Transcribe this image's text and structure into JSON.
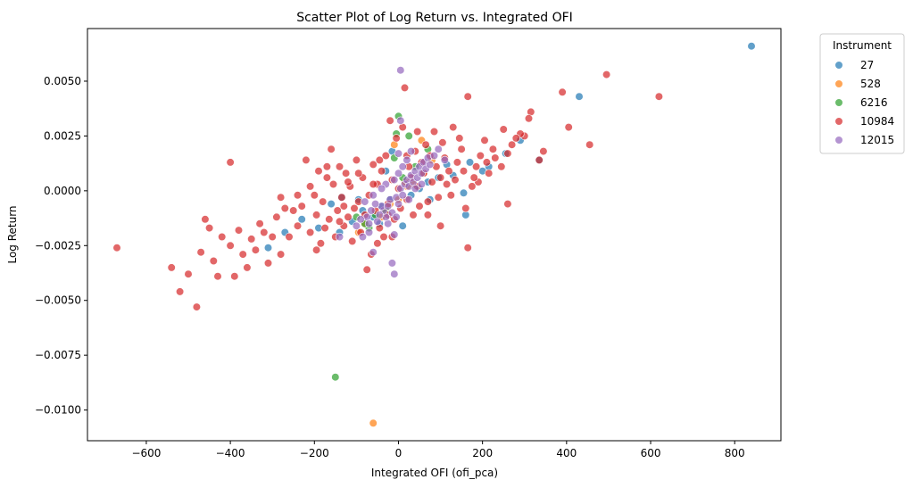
{
  "chart_data": {
    "type": "scatter",
    "title": "Scatter Plot of Log Return vs. Integrated OFI",
    "xlabel": "Integrated OFI (ofi_pca)",
    "ylabel": "Log Return",
    "xlim": [
      -740,
      910
    ],
    "ylim": [
      -0.0114,
      0.0074
    ],
    "xticks": [
      {
        "value": -600,
        "label": "−600"
      },
      {
        "value": -400,
        "label": "−400"
      },
      {
        "value": -200,
        "label": "−200"
      },
      {
        "value": 0,
        "label": "0"
      },
      {
        "value": 200,
        "label": "200"
      },
      {
        "value": 400,
        "label": "400"
      },
      {
        "value": 600,
        "label": "600"
      },
      {
        "value": 800,
        "label": "800"
      }
    ],
    "yticks": [
      {
        "value": -0.01,
        "label": "−0.0100"
      },
      {
        "value": -0.0075,
        "label": "−0.0075"
      },
      {
        "value": -0.005,
        "label": "−0.0050"
      },
      {
        "value": -0.0025,
        "label": "−0.0025"
      },
      {
        "value": 0,
        "label": "0.0000"
      },
      {
        "value": 0.0025,
        "label": "0.0025"
      },
      {
        "value": 0.005,
        "label": "0.0050"
      }
    ],
    "grid": false,
    "legend": {
      "title": "Instrument",
      "placement": "outside-top-right"
    },
    "marker_alpha": 0.7,
    "series": [
      {
        "name": "27",
        "color": "#1f77b4",
        "points": [
          [
            840,
            0.0066
          ],
          [
            430,
            0.0043
          ],
          [
            335,
            0.0014
          ],
          [
            290,
            0.0023
          ],
          [
            255,
            0.0017
          ],
          [
            215,
            0.0011
          ],
          [
            200,
            0.0009
          ],
          [
            170,
            0.0013
          ],
          [
            160,
            -0.0011
          ],
          [
            155,
            -0.0001
          ],
          [
            130,
            0.0007
          ],
          [
            115,
            0.0012
          ],
          [
            95,
            0.0006
          ],
          [
            70,
            0.0004
          ],
          [
            50,
            0.0001
          ],
          [
            30,
            -0.0002
          ],
          [
            20,
            0.0003
          ],
          [
            -20,
            -0.0004
          ],
          [
            -40,
            -0.0007
          ],
          [
            -60,
            -0.0012
          ],
          [
            -85,
            -0.0009
          ],
          [
            -110,
            -0.0014
          ],
          [
            -140,
            -0.0019
          ],
          [
            -160,
            -0.0006
          ],
          [
            -190,
            -0.0017
          ],
          [
            -230,
            -0.0013
          ],
          [
            -270,
            -0.0019
          ],
          [
            -310,
            -0.0026
          ],
          [
            -135,
            -0.0003
          ],
          [
            -95,
            -0.0004
          ],
          [
            -45,
            -0.0015
          ],
          [
            -30,
            0.0009
          ],
          [
            10,
            -0.0016
          ],
          [
            -15,
            0.0018
          ],
          [
            75,
            -0.0004
          ]
        ]
      },
      {
        "name": "528",
        "color": "#ff7f0e",
        "points": [
          [
            -60,
            -0.0106
          ],
          [
            -80,
            -0.0015
          ],
          [
            -40,
            -0.0012
          ],
          [
            -20,
            -0.0006
          ],
          [
            0,
            -0.0004
          ],
          [
            20,
            0.0002
          ],
          [
            35,
            0.0003
          ],
          [
            60,
            0.0008
          ],
          [
            80,
            0.0014
          ],
          [
            55,
            0.0023
          ],
          [
            -10,
            0.0021
          ],
          [
            -95,
            -0.0019
          ],
          [
            -30,
            -0.0009
          ],
          [
            15,
            0.0004
          ]
        ]
      },
      {
        "name": "6216",
        "color": "#2ca02c",
        "points": [
          [
            -150,
            -0.0085
          ],
          [
            0,
            0.0034
          ],
          [
            -5,
            0.0026
          ],
          [
            25,
            0.0025
          ],
          [
            70,
            0.0019
          ],
          [
            -10,
            0.0015
          ],
          [
            40,
            0.0011
          ],
          [
            -70,
            -0.0017
          ],
          [
            -80,
            -0.0015
          ],
          [
            -30,
            -0.0009
          ],
          [
            10,
            0.0006
          ],
          [
            -55,
            -0.0011
          ],
          [
            -100,
            -0.0012
          ]
        ]
      },
      {
        "name": "10984",
        "color": "#d62728",
        "points": [
          [
            620,
            0.0043
          ],
          [
            495,
            0.0053
          ],
          [
            455,
            0.0021
          ],
          [
            405,
            0.0029
          ],
          [
            390,
            0.0045
          ],
          [
            345,
            0.0018
          ],
          [
            335,
            0.0014
          ],
          [
            315,
            0.0036
          ],
          [
            310,
            0.0033
          ],
          [
            300,
            0.0025
          ],
          [
            290,
            0.0026
          ],
          [
            280,
            0.0024
          ],
          [
            270,
            0.0021
          ],
          [
            260,
            0.0017
          ],
          [
            250,
            0.0028
          ],
          [
            245,
            0.0011
          ],
          [
            230,
            0.0015
          ],
          [
            225,
            0.0019
          ],
          [
            215,
            0.0008
          ],
          [
            210,
            0.0013
          ],
          [
            205,
            0.0023
          ],
          [
            195,
            0.0016
          ],
          [
            190,
            0.0004
          ],
          [
            185,
            0.0011
          ],
          [
            180,
            0.0006
          ],
          [
            175,
            0.0002
          ],
          [
            165,
            -0.0026
          ],
          [
            260,
            -0.0006
          ],
          [
            155,
            0.0009
          ],
          [
            150,
            0.0019
          ],
          [
            145,
            0.0024
          ],
          [
            140,
            0.0013
          ],
          [
            135,
            0.0005
          ],
          [
            130,
            0.0029
          ],
          [
            125,
            -0.0002
          ],
          [
            120,
            0.0009
          ],
          [
            115,
            0.0003
          ],
          [
            110,
            0.0015
          ],
          [
            105,
            0.0022
          ],
          [
            100,
            0.0006
          ],
          [
            95,
            -0.0003
          ],
          [
            90,
            0.0011
          ],
          [
            85,
            0.0027
          ],
          [
            80,
            0.0004
          ],
          [
            75,
            0.0016
          ],
          [
            70,
            -0.0005
          ],
          [
            65,
            0.0021
          ],
          [
            60,
            0.0008
          ],
          [
            55,
            0.0013
          ],
          [
            50,
            -0.0007
          ],
          [
            45,
            0.0002
          ],
          [
            40,
            0.0018
          ],
          [
            35,
            -0.0011
          ],
          [
            30,
            0.0006
          ],
          [
            25,
            0.0011
          ],
          [
            20,
            -0.0004
          ],
          [
            15,
            0.0047
          ],
          [
            10,
            0.0029
          ],
          [
            5,
            -0.0008
          ],
          [
            0,
            0.0001
          ],
          [
            -5,
            0.0024
          ],
          [
            -10,
            -0.0013
          ],
          [
            -15,
            0.0005
          ],
          [
            -20,
            0.0032
          ],
          [
            -25,
            -0.0006
          ],
          [
            -30,
            0.0016
          ],
          [
            -35,
            -0.0021
          ],
          [
            -40,
            0.0009
          ],
          [
            -45,
            -0.0017
          ],
          [
            -50,
            0.0003
          ],
          [
            -55,
            -0.0009
          ],
          [
            -60,
            0.0012
          ],
          [
            -65,
            -0.0029
          ],
          [
            -70,
            -0.0002
          ],
          [
            -75,
            -0.0036
          ],
          [
            -80,
            -0.0011
          ],
          [
            -85,
            0.0006
          ],
          [
            -90,
            -0.0019
          ],
          [
            -95,
            -0.0005
          ],
          [
            -100,
            0.0014
          ],
          [
            -105,
            -0.0008
          ],
          [
            -110,
            -0.0023
          ],
          [
            -115,
            0.0002
          ],
          [
            -120,
            -0.0012
          ],
          [
            -125,
            0.0008
          ],
          [
            -130,
            -0.0016
          ],
          [
            -135,
            -0.0003
          ],
          [
            -140,
            0.0011
          ],
          [
            -145,
            -0.0009
          ],
          [
            -150,
            -0.0021
          ],
          [
            -155,
            0.0003
          ],
          [
            -160,
            0.0019
          ],
          [
            -165,
            -0.0013
          ],
          [
            -170,
            0.0006
          ],
          [
            -175,
            -0.0017
          ],
          [
            -180,
            -0.0005
          ],
          [
            -185,
            -0.0024
          ],
          [
            -190,
            0.0009
          ],
          [
            -195,
            -0.0011
          ],
          [
            -200,
            -0.0002
          ],
          [
            -210,
            -0.0019
          ],
          [
            -220,
            0.0014
          ],
          [
            -230,
            -0.0007
          ],
          [
            -240,
            -0.0016
          ],
          [
            -250,
            -0.0009
          ],
          [
            -260,
            -0.0021
          ],
          [
            -270,
            -0.0008
          ],
          [
            -280,
            -0.0029
          ],
          [
            -290,
            -0.0012
          ],
          [
            -300,
            -0.0021
          ],
          [
            -310,
            -0.0033
          ],
          [
            -320,
            -0.0019
          ],
          [
            -330,
            -0.0015
          ],
          [
            -340,
            -0.0027
          ],
          [
            -350,
            -0.0022
          ],
          [
            -360,
            -0.0035
          ],
          [
            -370,
            -0.0029
          ],
          [
            -380,
            -0.0018
          ],
          [
            -390,
            -0.0039
          ],
          [
            -400,
            -0.0025
          ],
          [
            -400,
            0.0013
          ],
          [
            -420,
            -0.0021
          ],
          [
            -430,
            -0.0039
          ],
          [
            -440,
            -0.0032
          ],
          [
            -450,
            -0.0017
          ],
          [
            -460,
            -0.0013
          ],
          [
            -470,
            -0.0028
          ],
          [
            -480,
            -0.0053
          ],
          [
            -500,
            -0.0038
          ],
          [
            -520,
            -0.0046
          ],
          [
            -540,
            -0.0035
          ],
          [
            -670,
            -0.0026
          ],
          [
            -280,
            -0.0003
          ],
          [
            -240,
            -0.0002
          ],
          [
            -210,
            0.0002
          ],
          [
            -170,
            0.0011
          ],
          [
            -130,
            -0.0007
          ],
          [
            -60,
            0.0003
          ],
          [
            -45,
            0.0014
          ],
          [
            165,
            0.0043
          ],
          [
            70,
            -0.0011
          ],
          [
            100,
            -0.0016
          ],
          [
            -15,
            -0.0021
          ],
          [
            -50,
            -0.0024
          ],
          [
            160,
            -0.0008
          ],
          [
            45,
            0.0027
          ],
          [
            -25,
            -0.0011
          ],
          [
            20,
            0.0016
          ],
          [
            -95,
            0.0008
          ],
          [
            -120,
            0.0004
          ],
          [
            -140,
            -0.0014
          ],
          [
            -195,
            -0.0027
          ]
        ]
      },
      {
        "name": "12015",
        "color": "#9467bd",
        "points": [
          [
            5,
            0.0055
          ],
          [
            -10,
            -0.0038
          ],
          [
            -15,
            -0.0033
          ],
          [
            -60,
            -0.0028
          ],
          [
            -140,
            -0.0021
          ],
          [
            -70,
            -0.0019
          ],
          [
            -10,
            -0.002
          ],
          [
            5,
            0.0032
          ],
          [
            -25,
            -0.0015
          ],
          [
            -30,
            -0.0012
          ],
          [
            -35,
            -0.0009
          ],
          [
            -40,
            -0.0007
          ],
          [
            -45,
            -0.0011
          ],
          [
            -50,
            -0.0014
          ],
          [
            -55,
            -0.0006
          ],
          [
            -20,
            -0.0004
          ],
          [
            -15,
            -0.001
          ],
          [
            -5,
            -0.0003
          ],
          [
            0,
            -0.0006
          ],
          [
            5,
            0.0001
          ],
          [
            10,
            -0.0002
          ],
          [
            15,
            0.0003
          ],
          [
            20,
            0.0005
          ],
          [
            25,
            0.0002
          ],
          [
            30,
            0.0007
          ],
          [
            35,
            0.0004
          ],
          [
            40,
            0.0009
          ],
          [
            45,
            0.0006
          ],
          [
            50,
            0.0011
          ],
          [
            55,
            0.0008
          ],
          [
            60,
            0.0013
          ],
          [
            65,
            0.001
          ],
          [
            70,
            0.0015
          ],
          [
            75,
            0.0012
          ],
          [
            85,
            0.0016
          ],
          [
            95,
            0.0019
          ],
          [
            110,
            0.0014
          ],
          [
            -60,
            -0.0002
          ],
          [
            -65,
            -0.0009
          ],
          [
            -75,
            -0.0012
          ],
          [
            -80,
            -0.0005
          ],
          [
            -90,
            -0.0013
          ],
          [
            -100,
            -0.0016
          ],
          [
            -85,
            -0.0021
          ],
          [
            -30,
            0.0003
          ],
          [
            -10,
            0.0005
          ],
          [
            0,
            0.0008
          ],
          [
            10,
            0.0011
          ],
          [
            20,
            0.0014
          ],
          [
            -25,
            -0.0007
          ],
          [
            -5,
            -0.0012
          ],
          [
            25,
            -0.0004
          ],
          [
            40,
            0.0001
          ],
          [
            55,
            0.0003
          ],
          [
            -40,
            0.0001
          ],
          [
            -70,
            -0.0015
          ],
          [
            0,
            0.0017
          ],
          [
            30,
            0.0018
          ]
        ]
      }
    ]
  }
}
